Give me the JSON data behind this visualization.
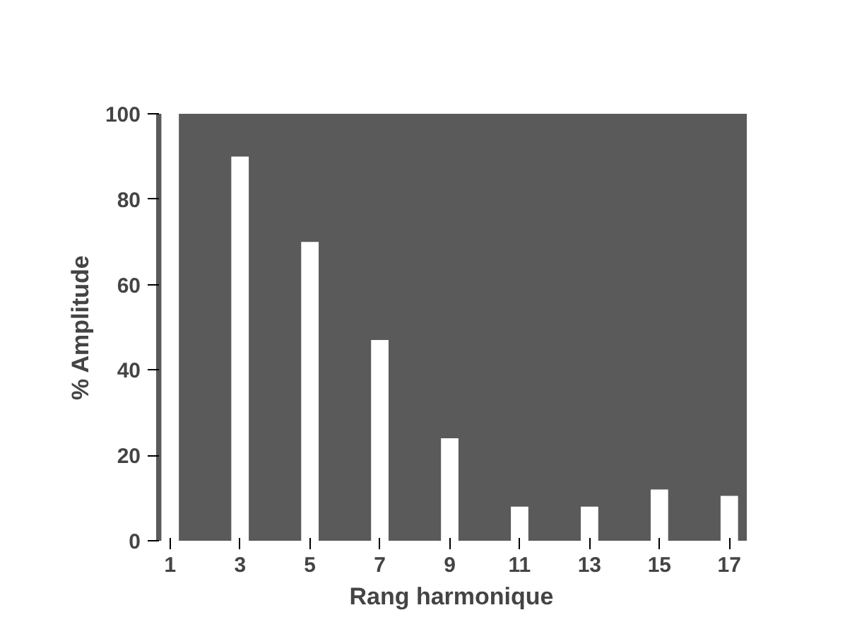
{
  "chart_data": {
    "type": "bar",
    "xlabel": "Rang harmonique",
    "ylabel": "% Amplitude",
    "x": [
      1,
      3,
      5,
      7,
      9,
      11,
      13,
      15,
      17
    ],
    "values": [
      100,
      90,
      70,
      47,
      24,
      8,
      8,
      12,
      10.5
    ],
    "color": "#ffffff",
    "xlim": [
      0.6,
      17.5
    ],
    "xticks": [
      1,
      3,
      5,
      7,
      9,
      11,
      13,
      15,
      17
    ],
    "ylim": [
      0,
      100
    ],
    "yticks": [
      0,
      20,
      40,
      60,
      80,
      100
    ],
    "grid": false
  }
}
